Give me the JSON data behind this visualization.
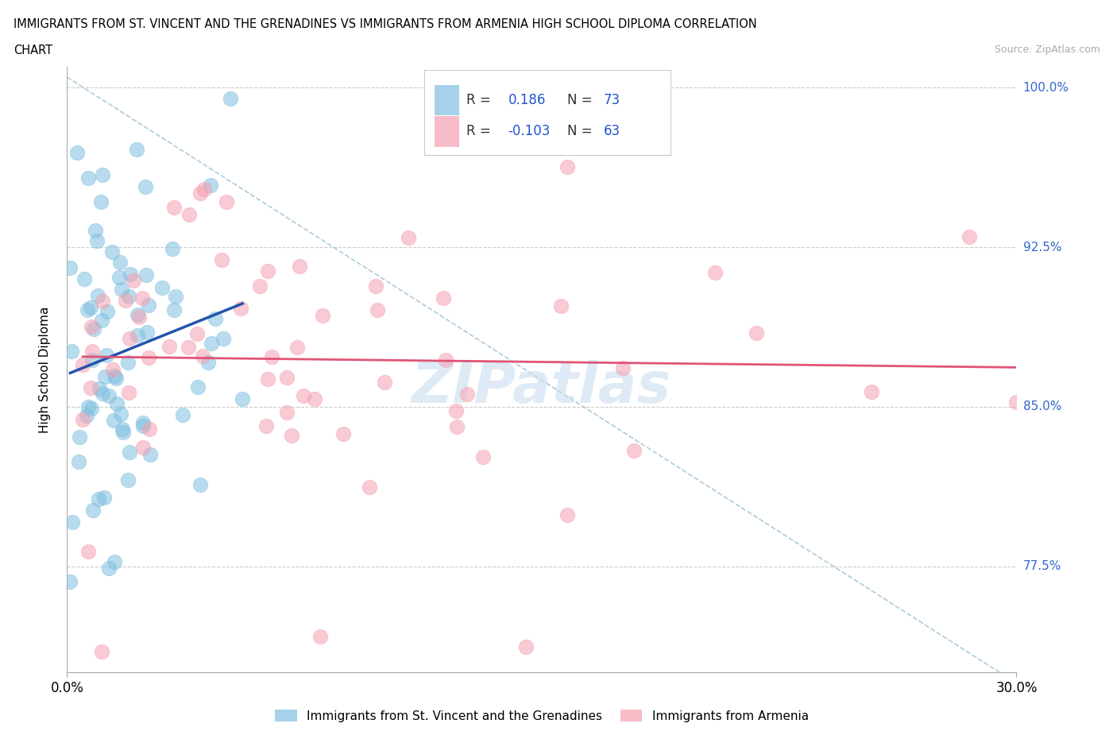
{
  "title_line1": "IMMIGRANTS FROM ST. VINCENT AND THE GRENADINES VS IMMIGRANTS FROM ARMENIA HIGH SCHOOL DIPLOMA CORRELATION",
  "title_line2": "CHART",
  "source": "Source: ZipAtlas.com",
  "ylabel": "High School Diploma",
  "x_min": 0.0,
  "x_max": 0.3,
  "y_min": 0.725,
  "y_max": 1.01,
  "y_ticks": [
    0.775,
    0.85,
    0.925,
    1.0
  ],
  "y_tick_labels": [
    "77.5%",
    "85.0%",
    "92.5%",
    "100.0%"
  ],
  "x_ticks": [
    0.0,
    0.3
  ],
  "x_tick_labels": [
    "0.0%",
    "30.0%"
  ],
  "R_blue": 0.186,
  "N_blue": 73,
  "R_pink": -0.103,
  "N_pink": 63,
  "blue_color": "#7fbfdf",
  "pink_color": "#f4a0b0",
  "blue_line_color": "#2255aa",
  "pink_line_color": "#e05575",
  "watermark_color": "#c8dff0"
}
